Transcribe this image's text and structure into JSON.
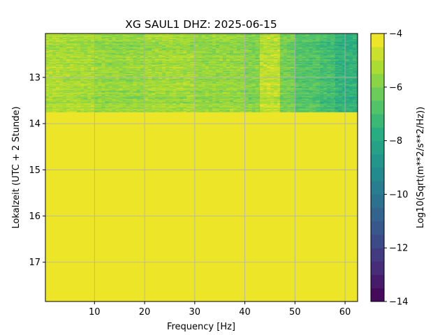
{
  "chart_data": {
    "type": "heatmap",
    "title": "XG SAUL1  DHZ: 2025-06-15",
    "xlabel": "Frequency [Hz]",
    "ylabel": "Lokalzeit (UTC + 2 Stunde)",
    "colorbar_label": "Log10(Sqrt(m**2/s**2/Hz))",
    "xlim": [
      0.2,
      62.5
    ],
    "ylim": [
      12.05,
      17.85
    ],
    "y_inverted": true,
    "xticks": [
      10,
      20,
      30,
      40,
      50,
      60
    ],
    "yticks": [
      13,
      14,
      15,
      16,
      17
    ],
    "clim": [
      -14,
      -4
    ],
    "cticks": [
      -4,
      -6,
      -8,
      -10,
      -12,
      -14
    ],
    "colormap": "viridis",
    "color_levels": 20,
    "grid": true,
    "data_rows": {
      "time_range": [
        12.05,
        13.75
      ],
      "row_step_hours": 0.02,
      "freq_bins": [
        {
          "f0": 0.2,
          "f1": 3,
          "level": -5.2
        },
        {
          "f0": 3,
          "f1": 10,
          "level": -5.3
        },
        {
          "f0": 10,
          "f1": 20,
          "level": -5.6
        },
        {
          "f0": 20,
          "f1": 30,
          "level": -5.4
        },
        {
          "f0": 30,
          "f1": 40,
          "level": -5.6
        },
        {
          "f0": 40,
          "f1": 43,
          "level": -5.9
        },
        {
          "f0": 43,
          "f1": 47,
          "level": -5.0
        },
        {
          "f0": 47,
          "f1": 50,
          "level": -6.1
        },
        {
          "f0": 50,
          "f1": 55,
          "level": -6.7
        },
        {
          "f0": 55,
          "f1": 58,
          "level": -7.0
        },
        {
          "f0": 58,
          "f1": 62.5,
          "level": -7.5
        }
      ]
    },
    "empty_region": {
      "time_range": [
        13.75,
        17.85
      ],
      "level": -4
    }
  }
}
